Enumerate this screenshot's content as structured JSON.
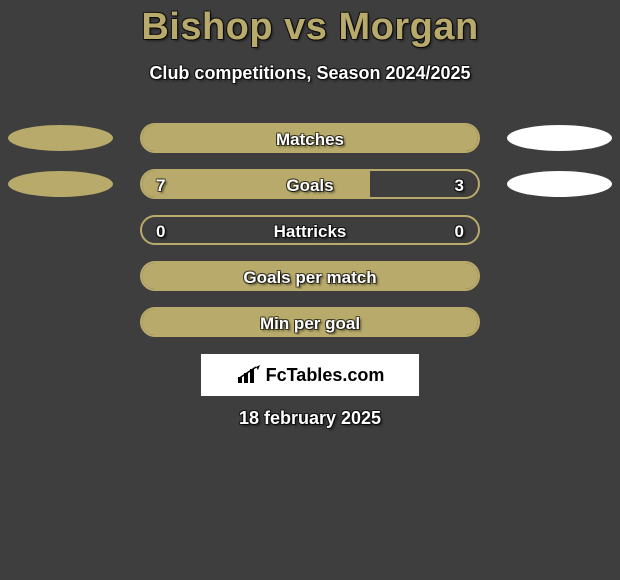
{
  "background_color": "#3e3e3e",
  "title": {
    "text": "Bishop vs Morgan",
    "color": "#b8aa6b",
    "fontsize": 38
  },
  "subtitle": {
    "text": "Club competitions, Season 2024/2025",
    "color": "#ffffff",
    "fontsize": 18
  },
  "bar_style": {
    "track_width": 340,
    "track_height": 30,
    "track_radius": 16,
    "fill_color": "#b8aa6b",
    "border_color": "#b8aa6b",
    "border_width": 2,
    "label_color": "#ffffff",
    "label_fontsize": 17
  },
  "blob_style": {
    "width": 105,
    "height": 26,
    "left_color": "#b8aa6b",
    "right_color": "#ffffff"
  },
  "rows": [
    {
      "label": "Matches",
      "left_value": "",
      "right_value": "",
      "left_pct": 100,
      "right_pct": 0,
      "show_left_blob": true,
      "show_right_blob": true
    },
    {
      "label": "Goals",
      "left_value": "7",
      "right_value": "3",
      "left_pct": 68,
      "right_pct": 0,
      "show_left_blob": true,
      "show_right_blob": true
    },
    {
      "label": "Hattricks",
      "left_value": "0",
      "right_value": "0",
      "left_pct": 0,
      "right_pct": 0,
      "show_left_blob": false,
      "show_right_blob": false
    },
    {
      "label": "Goals per match",
      "left_value": "",
      "right_value": "",
      "left_pct": 100,
      "right_pct": 0,
      "show_left_blob": false,
      "show_right_blob": false
    },
    {
      "label": "Min per goal",
      "left_value": "",
      "right_value": "",
      "left_pct": 100,
      "right_pct": 0,
      "show_left_blob": false,
      "show_right_blob": false
    }
  ],
  "brand": {
    "text": "FcTables.com",
    "box_bg": "#ffffff",
    "text_color": "#000000",
    "icon_name": "bar-chart-icon"
  },
  "date": {
    "text": "18 february 2025",
    "color": "#ffffff",
    "fontsize": 18
  }
}
